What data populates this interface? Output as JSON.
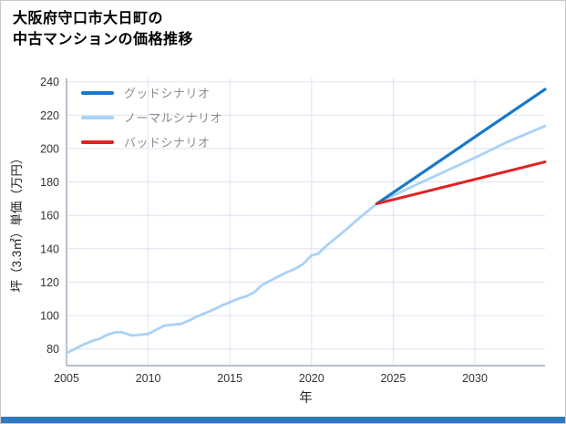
{
  "page": {
    "background": "#ffffff",
    "border_color": "#c9c9c9",
    "accent_bar_color": "#2e7ac1"
  },
  "title": {
    "line1": "大阪府守口市大日町の",
    "line2": "中古マンションの価格推移"
  },
  "chart_data": {
    "type": "line",
    "title": "大阪府守口市大日町の中古マンションの価格推移",
    "xlabel": "年",
    "ylabel": "坪（3.3㎡）単価（万円）",
    "xlim": [
      2005,
      2034.3
    ],
    "ylim": [
      70,
      242
    ],
    "xticks": [
      2005,
      2010,
      2015,
      2020,
      2025,
      2030
    ],
    "yticks": [
      80,
      100,
      120,
      140,
      160,
      180,
      200,
      220,
      240
    ],
    "grid": true,
    "legend_position": "top-left",
    "colors": {
      "grid": "#dde3f0",
      "axis": "#8e9aad",
      "tick_label": "#333333",
      "axis_title": "#222222",
      "legend_text": "#8c8c8c"
    },
    "series": [
      {
        "key": "good",
        "name": "グッドシナリオ",
        "color": "#1878c8",
        "width": 3.2,
        "x": [
          2024,
          2034.3
        ],
        "y": [
          167,
          235.5
        ]
      },
      {
        "key": "normal",
        "name": "ノーマルシナリオ",
        "color": "#a9d2f5",
        "width": 2.8,
        "x": [
          2005,
          2005.5,
          2006,
          2006.5,
          2007,
          2007.5,
          2008,
          2008.4,
          2009,
          2009.5,
          2010,
          2010.5,
          2011,
          2011.5,
          2012,
          2012.5,
          2013,
          2013.5,
          2014,
          2014.5,
          2015,
          2015.5,
          2016,
          2016.5,
          2017,
          2017.5,
          2018,
          2018.5,
          2019,
          2019.5,
          2020,
          2020.4,
          2021,
          2022,
          2023,
          2024,
          2026,
          2028,
          2030,
          2032,
          2034.3
        ],
        "y": [
          77.5,
          80,
          82.5,
          84.5,
          86,
          88.5,
          90,
          90,
          88,
          88.5,
          89,
          91.5,
          94,
          94.5,
          95,
          97,
          99.5,
          101.5,
          103.5,
          106,
          108,
          110,
          111.5,
          114,
          118.5,
          121,
          123.5,
          126,
          128,
          131,
          136,
          137,
          142.5,
          150.5,
          159,
          167,
          176.5,
          185.5,
          194.5,
          204,
          213.5
        ]
      },
      {
        "key": "bad",
        "name": "バッドシナリオ",
        "color": "#e02222",
        "width": 3,
        "x": [
          2024,
          2034.3
        ],
        "y": [
          167,
          192
        ]
      }
    ]
  }
}
